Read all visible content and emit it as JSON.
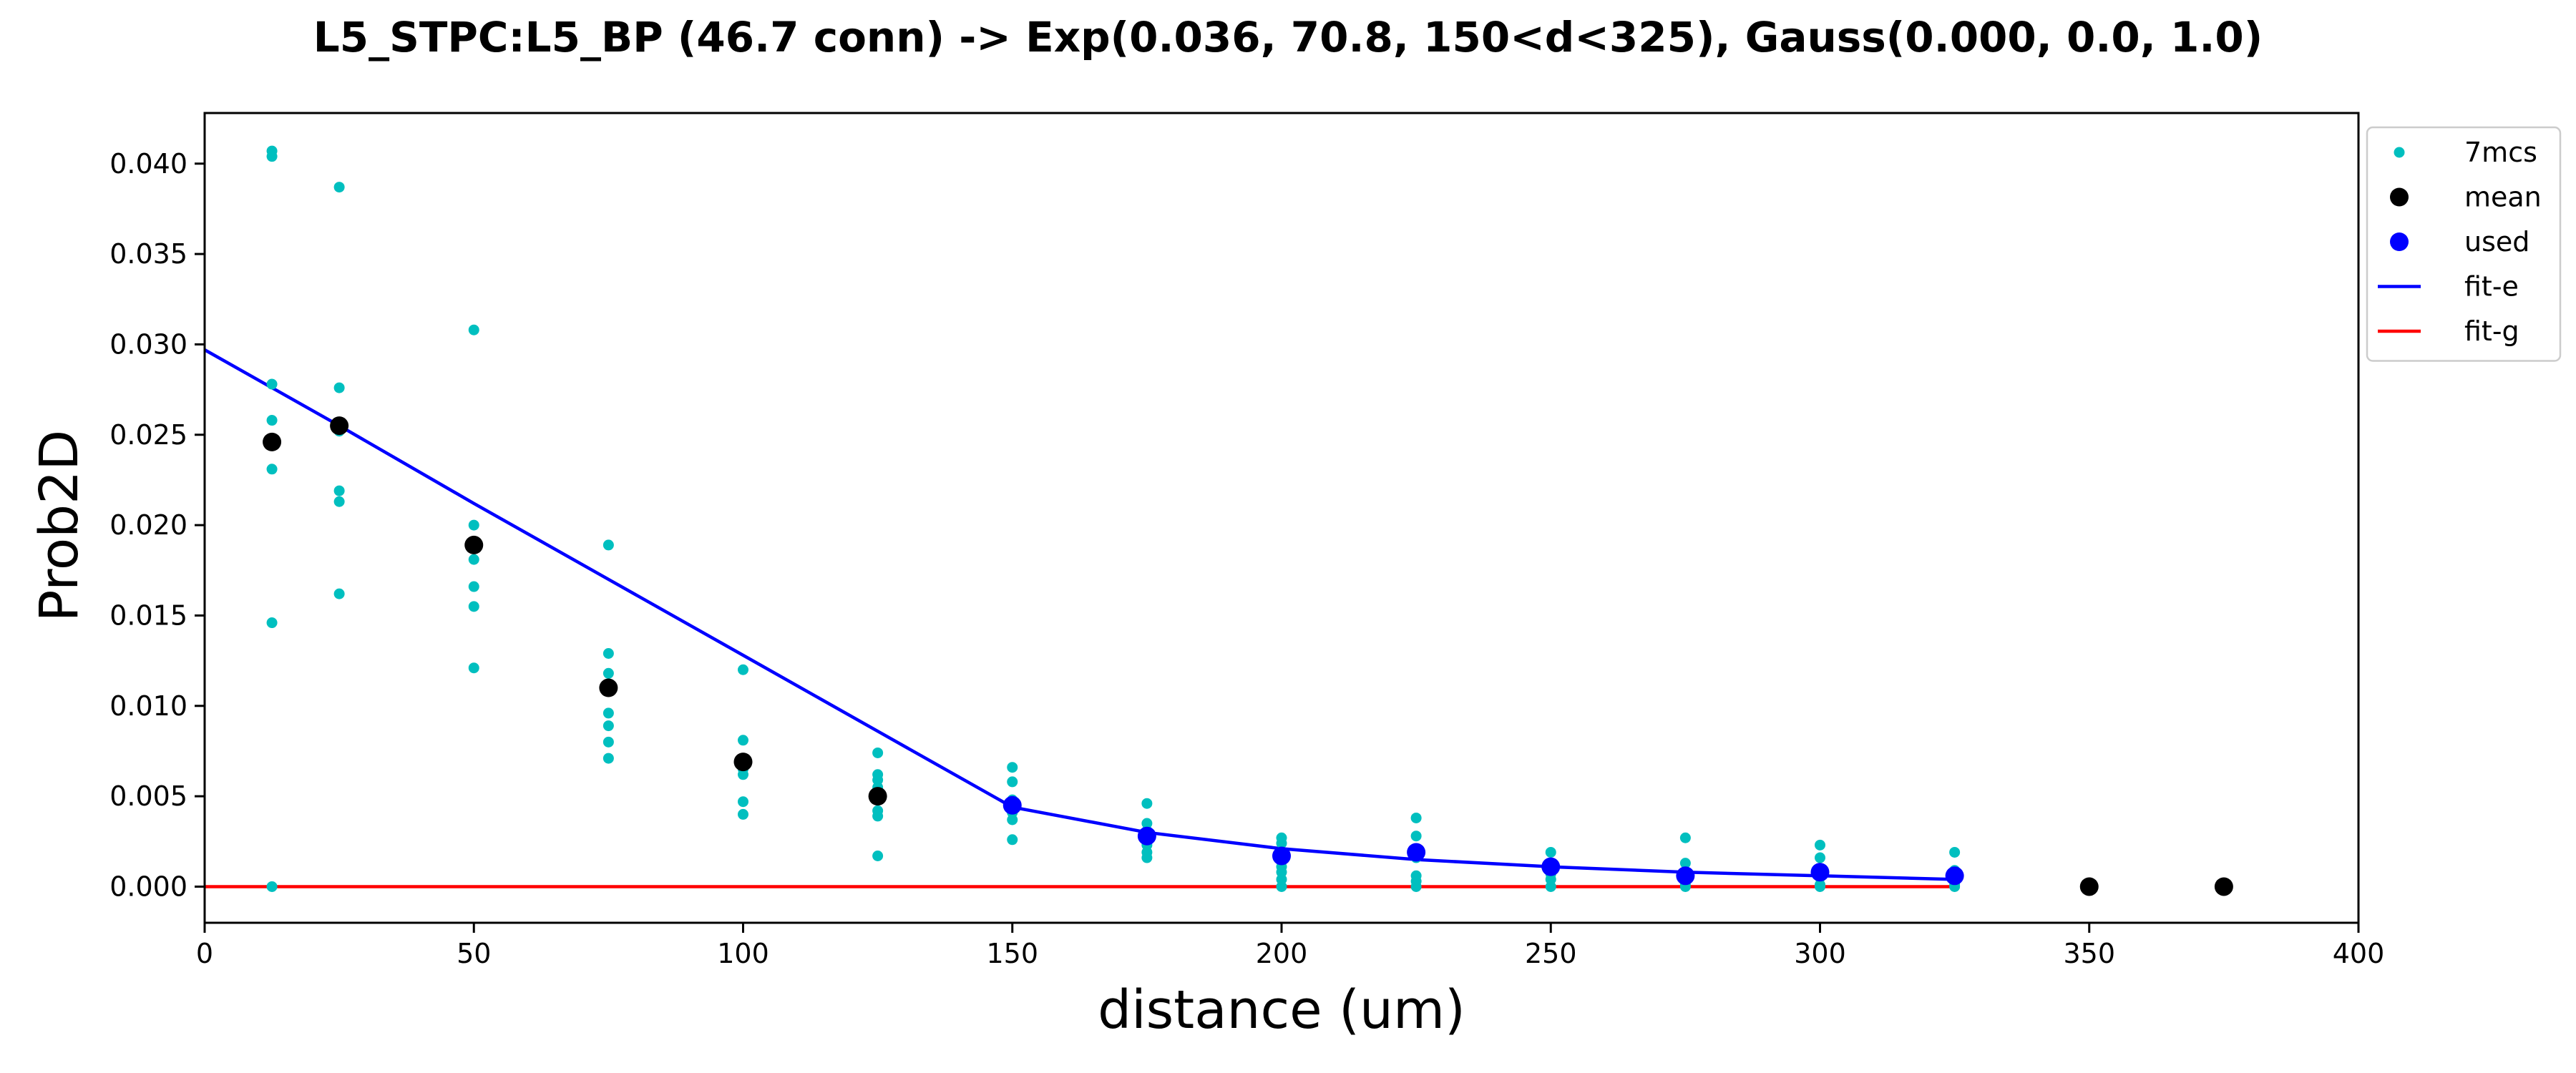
{
  "chart_data": {
    "type": "scatter",
    "title": "L5_STPC:L5_BP (46.7 conn) -> Exp(0.036, 70.8, 150<d<325), Gauss(0.000, 0.0, 1.0)",
    "xlabel": "distance (um)",
    "ylabel": "Prob2D",
    "xlim": [
      0,
      400
    ],
    "ylim": [
      -0.002,
      0.0428
    ],
    "x_ticks": [
      0,
      50,
      100,
      150,
      200,
      250,
      300,
      350,
      400
    ],
    "y_ticks": [
      0.0,
      0.005,
      0.01,
      0.015,
      0.02,
      0.025,
      0.03,
      0.035,
      0.04
    ],
    "x_tick_labels": [
      "0",
      "50",
      "100",
      "150",
      "200",
      "250",
      "300",
      "350",
      "400"
    ],
    "y_tick_labels": [
      "0.000",
      "0.005",
      "0.010",
      "0.015",
      "0.020",
      "0.025",
      "0.030",
      "0.035",
      "0.040"
    ],
    "grid": false,
    "legend_position": "outside-top-right",
    "series": [
      {
        "name": "7mcs",
        "kind": "scatter",
        "color": "#00bfbf",
        "points": [
          [
            12.5,
            0.0407
          ],
          [
            12.5,
            0.0404
          ],
          [
            12.5,
            0.0278
          ],
          [
            12.5,
            0.0258
          ],
          [
            12.5,
            0.0231
          ],
          [
            12.5,
            0.0146
          ],
          [
            12.5,
            0.0
          ],
          [
            25,
            0.0387
          ],
          [
            25,
            0.0276
          ],
          [
            25,
            0.0256
          ],
          [
            25,
            0.0252
          ],
          [
            25,
            0.0219
          ],
          [
            25,
            0.0213
          ],
          [
            25,
            0.0162
          ],
          [
            50,
            0.0308
          ],
          [
            50,
            0.02
          ],
          [
            50,
            0.0188
          ],
          [
            50,
            0.0181
          ],
          [
            50,
            0.0166
          ],
          [
            50,
            0.0155
          ],
          [
            50,
            0.0121
          ],
          [
            75,
            0.0189
          ],
          [
            75,
            0.0129
          ],
          [
            75,
            0.0118
          ],
          [
            75,
            0.0096
          ],
          [
            75,
            0.0089
          ],
          [
            75,
            0.008
          ],
          [
            75,
            0.0071
          ],
          [
            100,
            0.012
          ],
          [
            100,
            0.0081
          ],
          [
            100,
            0.0065
          ],
          [
            100,
            0.0062
          ],
          [
            100,
            0.0047
          ],
          [
            100,
            0.004
          ],
          [
            125,
            0.0074
          ],
          [
            125,
            0.0062
          ],
          [
            125,
            0.0059
          ],
          [
            125,
            0.0055
          ],
          [
            125,
            0.0042
          ],
          [
            125,
            0.0039
          ],
          [
            125,
            0.0017
          ],
          [
            150,
            0.0066
          ],
          [
            150,
            0.0058
          ],
          [
            150,
            0.0048
          ],
          [
            150,
            0.0041
          ],
          [
            150,
            0.0037
          ],
          [
            150,
            0.0026
          ],
          [
            175,
            0.0046
          ],
          [
            175,
            0.0035
          ],
          [
            175,
            0.0031
          ],
          [
            175,
            0.0028
          ],
          [
            175,
            0.0023
          ],
          [
            175,
            0.0019
          ],
          [
            175,
            0.0016
          ],
          [
            200,
            0.0027
          ],
          [
            200,
            0.0024
          ],
          [
            200,
            0.0017
          ],
          [
            200,
            0.0011
          ],
          [
            200,
            0.0008
          ],
          [
            200,
            0.0004
          ],
          [
            200,
            0.0
          ],
          [
            225,
            0.0038
          ],
          [
            225,
            0.0028
          ],
          [
            225,
            0.002
          ],
          [
            225,
            0.0016
          ],
          [
            225,
            0.0006
          ],
          [
            225,
            0.0003
          ],
          [
            225,
            0.0
          ],
          [
            250,
            0.0019
          ],
          [
            250,
            0.0013
          ],
          [
            250,
            0.0009
          ],
          [
            250,
            0.0007
          ],
          [
            250,
            0.0004
          ],
          [
            250,
            0.0
          ],
          [
            275,
            0.0027
          ],
          [
            275,
            0.0013
          ],
          [
            275,
            0.0008
          ],
          [
            275,
            0.0004
          ],
          [
            275,
            0.0001
          ],
          [
            275,
            0.0
          ],
          [
            300,
            0.0023
          ],
          [
            300,
            0.0016
          ],
          [
            300,
            0.0009
          ],
          [
            300,
            0.0005
          ],
          [
            300,
            0.0001
          ],
          [
            300,
            0.0
          ],
          [
            325,
            0.0019
          ],
          [
            325,
            0.0009
          ],
          [
            325,
            0.0006
          ],
          [
            325,
            0.0003
          ],
          [
            325,
            0.0001
          ],
          [
            325,
            0.0
          ]
        ]
      },
      {
        "name": "mean",
        "kind": "scatter",
        "color": "#000000",
        "points": [
          [
            12.5,
            0.0246
          ],
          [
            25,
            0.0255
          ],
          [
            50,
            0.0189
          ],
          [
            75,
            0.011
          ],
          [
            100,
            0.0069
          ],
          [
            125,
            0.005
          ],
          [
            350,
            0.0
          ],
          [
            375,
            0.0
          ]
        ]
      },
      {
        "name": "used",
        "kind": "scatter",
        "color": "#0000ff",
        "points": [
          [
            150,
            0.0045
          ],
          [
            175,
            0.0028
          ],
          [
            200,
            0.0017
          ],
          [
            225,
            0.0019
          ],
          [
            250,
            0.0011
          ],
          [
            275,
            0.0006
          ],
          [
            300,
            0.0008
          ],
          [
            325,
            0.0006
          ]
        ]
      },
      {
        "name": "fit-e",
        "kind": "line",
        "color": "#0000ff",
        "points": [
          [
            0,
            0.0297
          ],
          [
            25,
            0.0255
          ],
          [
            50,
            0.0212
          ],
          [
            75,
            0.017
          ],
          [
            100,
            0.0128
          ],
          [
            125,
            0.0086
          ],
          [
            150,
            0.0044
          ],
          [
            175,
            0.003
          ],
          [
            200,
            0.0021
          ],
          [
            225,
            0.0015
          ],
          [
            250,
            0.0011
          ],
          [
            275,
            0.0008
          ],
          [
            300,
            0.0006
          ],
          [
            325,
            0.0004
          ]
        ]
      },
      {
        "name": "fit-g",
        "kind": "line",
        "color": "#ff0000",
        "points": [
          [
            0,
            0.0
          ],
          [
            325,
            0.0
          ]
        ]
      }
    ]
  }
}
